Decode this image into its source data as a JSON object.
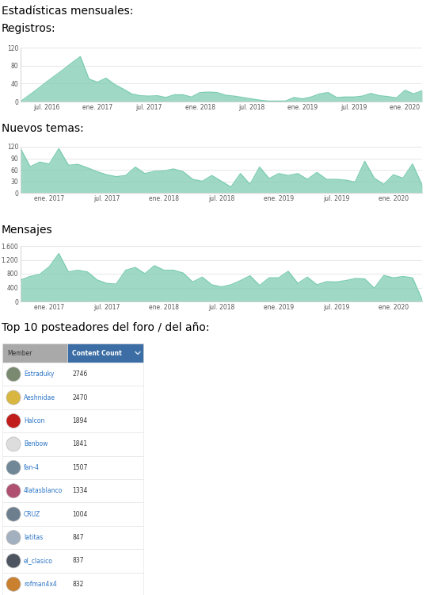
{
  "title": "Estadísticas mensuales:",
  "chart_data": [
    {
      "type": "area",
      "title": "Registros:",
      "categories": [
        null,
        null,
        null,
        "jul. 2016",
        null,
        null,
        null,
        null,
        null,
        "ene. 2017",
        null,
        null,
        null,
        null,
        null,
        "jul. 2017",
        null,
        null,
        null,
        null,
        null,
        "ene. 2018",
        null,
        null,
        null,
        null,
        null,
        "jul. 2018",
        null,
        null,
        null,
        null,
        null,
        "ene. 2019",
        null,
        null,
        null,
        null,
        null,
        "jul. 2019",
        null,
        null,
        null,
        null,
        null,
        "ene. 2020",
        null,
        null
      ],
      "values": [
        0,
        14,
        28,
        43,
        57,
        71,
        86,
        100,
        50,
        43,
        52,
        38,
        28,
        17,
        13,
        12,
        13,
        9,
        15,
        15,
        10,
        20,
        21,
        20,
        14,
        12,
        9,
        6,
        3,
        1,
        1,
        1,
        9,
        6,
        10,
        17,
        20,
        9,
        10,
        10,
        12,
        18,
        13,
        11,
        8,
        25,
        17,
        24
      ],
      "color": "#7fcdb3",
      "ylim": [
        0,
        120
      ],
      "yticks": [
        0,
        40,
        80,
        120
      ],
      "grid": true
    },
    {
      "type": "area",
      "title": "Nuevos temas:",
      "categories": [
        null,
        null,
        null,
        "ene. 2017",
        null,
        null,
        null,
        null,
        null,
        "jul. 2017",
        null,
        null,
        null,
        null,
        null,
        "ene. 2018",
        null,
        null,
        null,
        null,
        null,
        "jul. 2018",
        null,
        null,
        null,
        null,
        null,
        "ene. 2019",
        null,
        null,
        null,
        null,
        null,
        "jul. 2019",
        null,
        null,
        null,
        null,
        null,
        "ene. 2020",
        null,
        null,
        null
      ],
      "values": [
        115,
        68,
        80,
        75,
        115,
        72,
        74,
        65,
        55,
        47,
        42,
        45,
        67,
        50,
        56,
        57,
        62,
        55,
        35,
        30,
        45,
        30,
        15,
        50,
        22,
        67,
        37,
        50,
        45,
        50,
        35,
        53,
        35,
        35,
        33,
        28,
        82,
        38,
        22,
        47,
        38,
        75,
        20
      ],
      "color": "#7fcdb3",
      "ylim": [
        0,
        120
      ],
      "yticks": [
        0,
        30,
        60,
        90,
        120
      ],
      "grid": true
    },
    {
      "type": "area",
      "title": "Mensajes",
      "categories": [
        null,
        null,
        null,
        "ene. 2017",
        null,
        null,
        null,
        null,
        null,
        "jul. 2017",
        null,
        null,
        null,
        null,
        null,
        "ene. 2018",
        null,
        null,
        null,
        null,
        null,
        "jul. 2018",
        null,
        null,
        null,
        null,
        null,
        "ene. 2019",
        null,
        null,
        null,
        null,
        null,
        "jul. 2019",
        null,
        null,
        null,
        null,
        null,
        "ene. 2020",
        null,
        null,
        null
      ],
      "values": [
        620,
        720,
        780,
        1000,
        1380,
        850,
        900,
        850,
        620,
        520,
        500,
        900,
        980,
        800,
        1030,
        900,
        900,
        820,
        560,
        700,
        480,
        420,
        480,
        600,
        740,
        460,
        680,
        680,
        870,
        520,
        700,
        480,
        570,
        560,
        600,
        660,
        650,
        380,
        750,
        680,
        720,
        680,
        50
      ],
      "color": "#7fcdb3",
      "ylim": [
        0,
        1600
      ],
      "yticks": [
        0,
        400,
        800,
        {
          "value": 1200,
          "label": "1.200"
        },
        {
          "value": 1600,
          "label": "1.600"
        }
      ],
      "grid": true
    }
  ],
  "table": {
    "title": "Top 10 posteadores del foro / del año:",
    "columns": [
      "Member",
      "Content Count"
    ],
    "rows": [
      [
        "Estraduky",
        2746
      ],
      [
        "Aeshnidae",
        2470
      ],
      [
        "Halcon",
        1894
      ],
      [
        "Benbow",
        1841
      ],
      [
        "fan-4",
        1507
      ],
      [
        "4latasblanco",
        1334
      ],
      [
        "CRUZ",
        1004
      ],
      [
        "latitas",
        847
      ],
      [
        "el_clasico",
        837
      ],
      [
        "rofman4x4",
        832
      ]
    ]
  }
}
